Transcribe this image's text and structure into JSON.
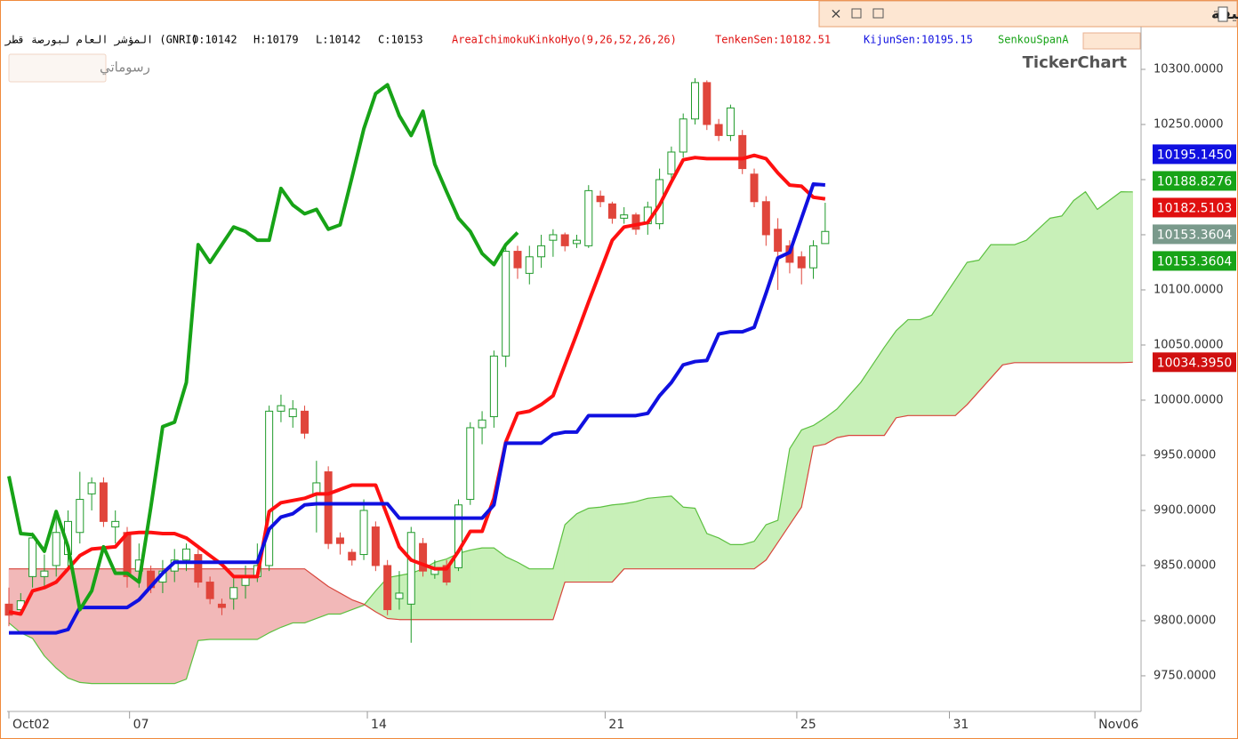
{
  "window": {
    "title": "المؤشر العام لبورصة قطر - ستون دقيقة",
    "watermark": "TickerChart",
    "drawings_button": "رسوماتي"
  },
  "header": {
    "symbol": "المؤشر العام لبورصة قطر (GNRI)",
    "ohlc": [
      "O:10142",
      "H:10179",
      "L:10142",
      "C:10153"
    ],
    "indicator": "AreaIchimokuKinkoHyo(9,26,52,26,26)",
    "tenkan": "TenkenSen:10182.51",
    "kijun": "KijunSen:10195.15",
    "span_a": "SenkouSpanA"
  },
  "chart_data": {
    "type": "candlestick",
    "candles": {
      "up_color": "#1f9a2a",
      "down_color": "#e0453b",
      "open": [
        9815,
        9810,
        9840,
        9840,
        9850,
        9860,
        9880,
        9915,
        9925,
        9885,
        9880,
        9845,
        9845,
        9835,
        9845,
        9855,
        9860,
        9835,
        9815,
        9820,
        9832,
        9840,
        9850,
        9990,
        9985,
        9990,
        9915,
        9935,
        9875,
        9862,
        9860,
        9885,
        9850,
        9820,
        9815,
        9870,
        9842,
        9850,
        9848,
        9910,
        9975,
        9985,
        10040,
        10135,
        10115,
        10130,
        10145,
        10150,
        10142,
        10140,
        10185,
        10178,
        10165,
        10168,
        10160,
        10160,
        10205,
        10225,
        10255,
        10288,
        10250,
        10240,
        10240,
        10205,
        10180,
        10155,
        10140,
        10130,
        10120,
        10142
      ],
      "high": [
        9830,
        9825,
        9880,
        9860,
        9900,
        9900,
        9935,
        9930,
        9930,
        9900,
        9885,
        9870,
        9850,
        9855,
        9865,
        9870,
        9865,
        9840,
        9820,
        9840,
        9850,
        9870,
        9995,
        10005,
        10000,
        9995,
        9945,
        9940,
        9880,
        9865,
        9910,
        9890,
        9855,
        9845,
        9885,
        9875,
        9855,
        9855,
        9910,
        9980,
        9990,
        10045,
        10140,
        10140,
        10140,
        10150,
        10155,
        10152,
        10150,
        10195,
        10190,
        10180,
        10175,
        10170,
        10180,
        10210,
        10230,
        10260,
        10292,
        10290,
        10255,
        10268,
        10245,
        10210,
        10185,
        10165,
        10145,
        10135,
        10145,
        10179
      ],
      "low": [
        9795,
        9805,
        9830,
        9830,
        9840,
        9845,
        9870,
        9900,
        9885,
        9870,
        9830,
        9830,
        9825,
        9825,
        9835,
        9845,
        9830,
        9815,
        9805,
        9810,
        9820,
        9835,
        9845,
        9980,
        9975,
        9965,
        9880,
        9865,
        9860,
        9850,
        9855,
        9845,
        9805,
        9810,
        9780,
        9840,
        9838,
        9832,
        9845,
        9905,
        9960,
        9975,
        10030,
        10110,
        10105,
        10120,
        10130,
        10135,
        10138,
        10138,
        10175,
        10160,
        10160,
        10150,
        10150,
        10155,
        10200,
        10220,
        10250,
        10245,
        10235,
        10235,
        10205,
        10175,
        10140,
        10100,
        10115,
        10105,
        10110,
        10142
      ],
      "close": [
        9805,
        9818,
        9875,
        9845,
        9880,
        9890,
        9910,
        9925,
        9890,
        9890,
        9840,
        9855,
        9830,
        9845,
        9855,
        9865,
        9835,
        9820,
        9812,
        9830,
        9840,
        9850,
        9990,
        9995,
        9992,
        9970,
        9925,
        9870,
        9870,
        9855,
        9900,
        9850,
        9810,
        9825,
        9880,
        9845,
        9848,
        9835,
        9905,
        9975,
        9982,
        10040,
        10135,
        10120,
        10130,
        10140,
        10150,
        10140,
        10145,
        10190,
        10180,
        10165,
        10168,
        10155,
        10175,
        10200,
        10225,
        10255,
        10288,
        10250,
        10240,
        10265,
        10210,
        10180,
        10150,
        10135,
        10125,
        10120,
        10140,
        10153
      ]
    },
    "lines": [
      {
        "color": "#ff1010",
        "values": [
          9808,
          9806,
          9827,
          9830,
          9835,
          9847,
          9859,
          9865,
          9866,
          9867,
          9879,
          9880,
          9880,
          9879,
          9879,
          9875,
          9867,
          9859,
          9851,
          9840,
          9840,
          9840,
          9899,
          9907,
          9909,
          9911,
          9915,
          9915,
          9919,
          9923,
          9923,
          9923,
          9895,
          9867,
          9855,
          9851,
          9847,
          9847,
          9863,
          9881,
          9881,
          9911,
          9962,
          9988,
          9990,
          9996,
          10004,
          10032,
          10060,
          10089,
          10117,
          10145,
          10157,
          10159,
          10161,
          10177,
          10198,
          10218,
          10220,
          10219,
          10219,
          10219,
          10219,
          10222,
          10219,
          10206,
          10195,
          10194,
          10184,
          10182.5103
        ]
      },
      {
        "color": "#1010e0",
        "values": [
          9789,
          9789,
          9789,
          9789,
          9789,
          9792,
          9812,
          9812,
          9812,
          9812,
          9812,
          9819,
          9831,
          9843,
          9853,
          9853,
          9853,
          9853,
          9853,
          9853,
          9853,
          9853,
          9883,
          9894,
          9897,
          9905,
          9906,
          9906,
          9906,
          9906,
          9906,
          9906,
          9906,
          9893,
          9893,
          9893,
          9893,
          9893,
          9893,
          9893,
          9893,
          9905,
          9961,
          9961,
          9961,
          9961,
          9969,
          9971,
          9971,
          9986,
          9986,
          9986,
          9986,
          9986,
          9988,
          10004,
          10016,
          10032,
          10035,
          10036,
          10060,
          10062,
          10062,
          10066,
          10097,
          10129,
          10134,
          10165,
          10196,
          10195.145
        ]
      },
      {
        "color": "#17a317",
        "values": [
          9931,
          9879,
          9878,
          9863,
          9899,
          9867,
          9810,
          9827,
          9867,
          9843,
          9843,
          9835,
          9903,
          9976,
          9980,
          10016,
          10141,
          10125,
          10141,
          10157,
          10153,
          10145,
          10145,
          10192,
          10177,
          10169,
          10173,
          10155,
          10159,
          10202,
          10246,
          10278,
          10286,
          10258,
          10240,
          10262,
          10214,
          10189,
          10165,
          10153,
          10133,
          10123,
          10141,
          10152
        ]
      }
    ],
    "cloud": {
      "up_color": "#c8f0b8",
      "down_color": "#f2b8b8",
      "span_a_color": "#5cc040",
      "span_b_color": "#d8463c",
      "span_a": [
        9798,
        9789,
        9784,
        9768,
        9757,
        9748,
        9744,
        9743,
        9743,
        9743,
        9743,
        9743,
        9743,
        9743,
        9743,
        9747,
        9782,
        9783,
        9783,
        9783,
        9783,
        9783,
        9789,
        9794,
        9798,
        9798,
        9802,
        9806,
        9806,
        9810,
        9814,
        9827,
        9839,
        9841,
        9843,
        9847,
        9853,
        9856,
        9861,
        9864,
        9866,
        9866,
        9858,
        9853,
        9847,
        9847,
        9847,
        9887,
        9897,
        9902,
        9903,
        9905,
        9906,
        9908,
        9911,
        9912,
        9913,
        9903,
        9902,
        9879,
        9875,
        9869,
        9869,
        9872,
        9887,
        9891,
        9956,
        9973,
        9977,
        9984,
        9992,
        10004,
        10016,
        10032,
        10048,
        10063,
        10073,
        10073,
        10077,
        10093,
        10109,
        10125,
        10127,
        10141,
        10141,
        10141,
        10145,
        10155,
        10165,
        10167,
        10181,
        10189,
        10173,
        10181,
        10189,
        10188.8276
      ],
      "span_b": [
        9847,
        9847,
        9847,
        9847,
        9847,
        9847,
        9847,
        9847,
        9847,
        9847,
        9847,
        9847,
        9847,
        9847,
        9847,
        9847,
        9847,
        9847,
        9847,
        9847,
        9847,
        9847,
        9847,
        9847,
        9847,
        9847,
        9839,
        9831,
        9825,
        9819,
        9815,
        9808,
        9802,
        9801,
        9801,
        9801,
        9801,
        9801,
        9801,
        9801,
        9801,
        9801,
        9801,
        9801,
        9801,
        9801,
        9801,
        9835,
        9835,
        9835,
        9835,
        9835,
        9847,
        9847,
        9847,
        9847,
        9847,
        9847,
        9847,
        9847,
        9847,
        9847,
        9847,
        9847,
        9855,
        9871,
        9887,
        9903,
        9958,
        9960,
        9966,
        9968,
        9968,
        9968,
        9968,
        9984,
        9986,
        9986,
        9986,
        9986,
        9986,
        9996,
        10008,
        10020,
        10032,
        10034,
        10034,
        10034,
        10034,
        10034,
        10034,
        10034,
        10034,
        10034,
        10034,
        10034.395
      ]
    },
    "xlim": [
      -0.15,
      95.7
    ],
    "xticks": [
      {
        "value": 0,
        "label": "Oct02"
      },
      {
        "value": 10.2,
        "label": "07"
      },
      {
        "value": 30.3,
        "label": "14"
      },
      {
        "value": 50.4,
        "label": "21"
      },
      {
        "value": 66.6,
        "label": "25"
      },
      {
        "value": 79.5,
        "label": "31"
      },
      {
        "value": 91.8,
        "label": "Nov06"
      }
    ],
    "ylim": [
      9717.7,
      10338.7
    ],
    "yticks": [
      {
        "value": 10300,
        "label": "10300.0000"
      },
      {
        "value": 10250,
        "label": "10250.0000"
      },
      {
        "value": 10200,
        "label": "10200.0000"
      },
      {
        "value": 10150,
        "label": "10150.0000"
      },
      {
        "value": 10100,
        "label": "10100.0000"
      },
      {
        "value": 10050,
        "label": "10050.0000"
      },
      {
        "value": 10000,
        "label": "10000.0000"
      },
      {
        "value": 9950,
        "label": "9950.0000"
      },
      {
        "value": 9900,
        "label": "9900.0000"
      },
      {
        "value": 9850,
        "label": "9850.0000"
      },
      {
        "value": 9800,
        "label": "9800.0000"
      },
      {
        "value": 9750,
        "label": "9750.0000"
      }
    ],
    "price_tags": [
      {
        "value": 10195.145,
        "label": "10195.1450",
        "color": "#1010e0"
      },
      {
        "value": 10188.8276,
        "label": "10188.8276",
        "color": "#17a317"
      },
      {
        "value": 10182.5103,
        "label": "10182.5103",
        "color": "#e01010"
      },
      {
        "value": 10153.3604,
        "label": "10153.3604",
        "color": "#7a9a8c"
      },
      {
        "value": 10153.3604,
        "label": "10153.3604",
        "color": "#17a317"
      },
      {
        "value": 10034.395,
        "label": "10034.3950",
        "color": "#d01010"
      }
    ]
  }
}
